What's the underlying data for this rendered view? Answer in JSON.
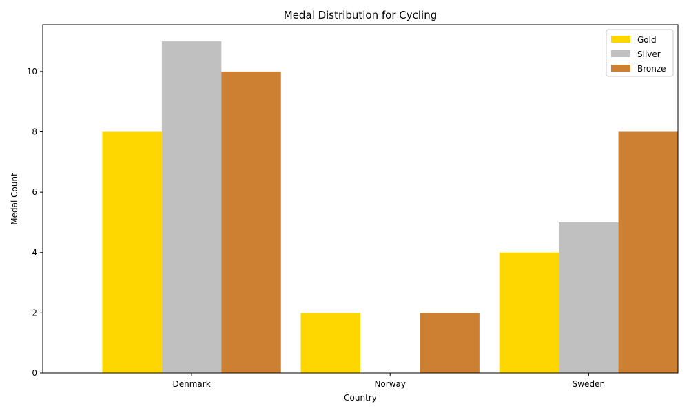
{
  "chart_data": {
    "type": "bar",
    "title": "Medal Distribution for Cycling",
    "xlabel": "Country",
    "ylabel": "Medal Count",
    "categories": [
      "Denmark",
      "Norway",
      "Sweden"
    ],
    "series": [
      {
        "name": "Gold",
        "values": [
          8,
          2,
          4
        ],
        "color": "#FFD700"
      },
      {
        "name": "Silver",
        "values": [
          11,
          0,
          5
        ],
        "color": "#C0C0C0"
      },
      {
        "name": "Bronze",
        "values": [
          10,
          2,
          8
        ],
        "color": "#CD7F32"
      }
    ],
    "ylim": [
      0,
      11.55
    ],
    "yticks": [
      0,
      2,
      4,
      6,
      8,
      10
    ],
    "grid": false,
    "legend_position": "top-right"
  }
}
